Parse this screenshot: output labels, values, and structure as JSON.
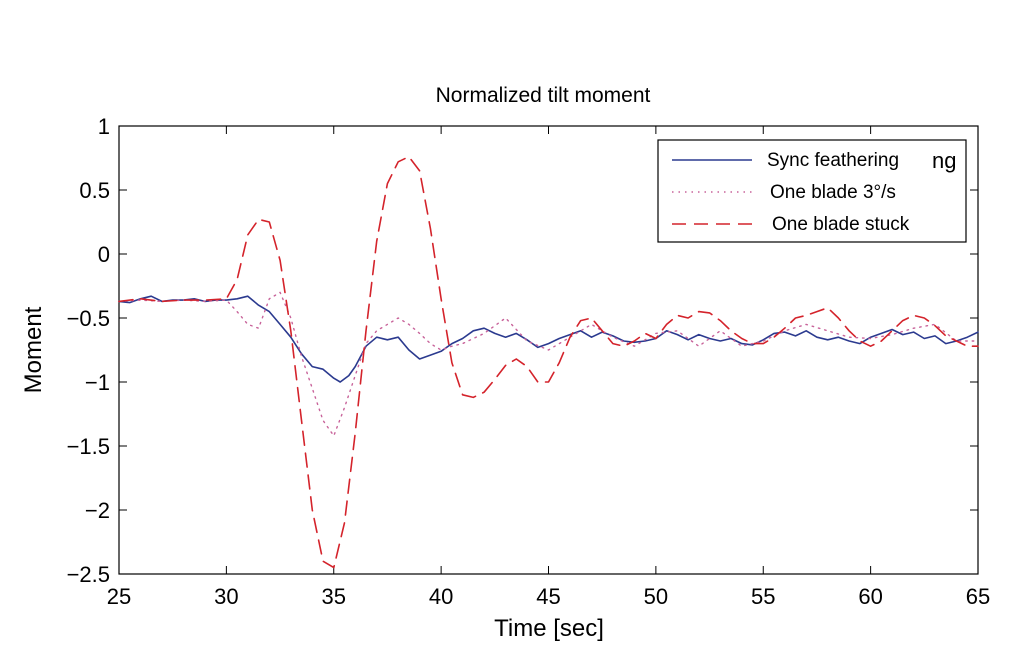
{
  "chart_data": {
    "type": "line",
    "title": "Normalized tilt moment",
    "xlabel": "Time [sec]",
    "ylabel": "Moment",
    "xlim": [
      25,
      65
    ],
    "ylim": [
      -2.5,
      1
    ],
    "xticks": [
      25,
      30,
      35,
      40,
      45,
      50,
      55,
      60,
      65
    ],
    "yticks": [
      1,
      0.5,
      0,
      -0.5,
      -1,
      -1.5,
      -2,
      -2.5
    ],
    "xtick_labels": [
      "25",
      "30",
      "35",
      "40",
      "45",
      "50",
      "55",
      "60",
      "65"
    ],
    "ytick_labels": [
      "1",
      "0.5",
      "0",
      "−0.5",
      "−1",
      "−1.5",
      "−2",
      "−2.5"
    ],
    "grid": false,
    "legend_position": "top-right",
    "legend_overflow_text": "ng",
    "series": [
      {
        "name": "Sync feathering",
        "color": "#2b3a8f",
        "style": "solid",
        "x": [
          25,
          25.5,
          26,
          26.5,
          27,
          27.5,
          28,
          28.5,
          29,
          29.5,
          30,
          30.5,
          31,
          31.5,
          32,
          32.5,
          33,
          33.5,
          34,
          34.5,
          35,
          35.3,
          35.7,
          36,
          36.5,
          37,
          37.5,
          38,
          38.5,
          39,
          39.5,
          40,
          40.5,
          41,
          41.5,
          42,
          42.5,
          43,
          43.5,
          44,
          44.5,
          45,
          45.5,
          46,
          46.5,
          47,
          47.5,
          48,
          48.5,
          49,
          49.5,
          50,
          50.5,
          51,
          51.5,
          52,
          52.5,
          53,
          53.5,
          54,
          54.5,
          55,
          55.5,
          56,
          56.5,
          57,
          57.5,
          58,
          58.5,
          59,
          59.5,
          60,
          60.5,
          61,
          61.5,
          62,
          62.5,
          63,
          63.5,
          64,
          64.5,
          65
        ],
        "y": [
          -0.37,
          -0.38,
          -0.35,
          -0.33,
          -0.37,
          -0.36,
          -0.36,
          -0.35,
          -0.37,
          -0.36,
          -0.36,
          -0.35,
          -0.33,
          -0.4,
          -0.45,
          -0.55,
          -0.65,
          -0.78,
          -0.88,
          -0.9,
          -0.97,
          -1.0,
          -0.95,
          -0.88,
          -0.72,
          -0.65,
          -0.67,
          -0.65,
          -0.75,
          -0.82,
          -0.79,
          -0.76,
          -0.7,
          -0.66,
          -0.6,
          -0.58,
          -0.62,
          -0.65,
          -0.62,
          -0.67,
          -0.73,
          -0.7,
          -0.66,
          -0.63,
          -0.6,
          -0.65,
          -0.61,
          -0.64,
          -0.68,
          -0.69,
          -0.68,
          -0.66,
          -0.6,
          -0.63,
          -0.67,
          -0.63,
          -0.66,
          -0.68,
          -0.66,
          -0.7,
          -0.71,
          -0.67,
          -0.62,
          -0.61,
          -0.64,
          -0.6,
          -0.65,
          -0.67,
          -0.65,
          -0.68,
          -0.7,
          -0.65,
          -0.62,
          -0.59,
          -0.63,
          -0.61,
          -0.66,
          -0.64,
          -0.7,
          -0.68,
          -0.65,
          -0.61
        ]
      },
      {
        "name": "One blade 3°/s",
        "color": "#c8639a",
        "style": "dotted",
        "x": [
          25,
          26,
          27,
          28,
          29,
          30,
          30.5,
          31,
          31.5,
          32,
          32.5,
          33,
          33.5,
          34,
          34.5,
          35,
          35.5,
          36,
          36.5,
          37,
          37.5,
          38,
          38.5,
          39,
          39.5,
          40,
          40.5,
          41,
          42,
          43,
          44,
          45,
          46,
          47,
          48,
          49,
          50,
          51,
          52,
          53,
          54,
          55,
          56,
          57,
          58,
          59,
          60,
          61,
          62,
          63,
          64,
          65
        ],
        "y": [
          -0.37,
          -0.36,
          -0.37,
          -0.36,
          -0.37,
          -0.36,
          -0.45,
          -0.55,
          -0.58,
          -0.35,
          -0.3,
          -0.5,
          -0.8,
          -1.05,
          -1.3,
          -1.42,
          -1.2,
          -0.95,
          -0.7,
          -0.6,
          -0.55,
          -0.5,
          -0.55,
          -0.62,
          -0.7,
          -0.75,
          -0.72,
          -0.7,
          -0.62,
          -0.5,
          -0.68,
          -0.75,
          -0.65,
          -0.55,
          -0.65,
          -0.72,
          -0.62,
          -0.6,
          -0.72,
          -0.6,
          -0.72,
          -0.68,
          -0.6,
          -0.55,
          -0.6,
          -0.65,
          -0.66,
          -0.63,
          -0.58,
          -0.55,
          -0.68,
          -0.68
        ]
      },
      {
        "name": "One blade stuck",
        "color": "#d4232b",
        "style": "dashed",
        "x": [
          25,
          26,
          27,
          28,
          29,
          30,
          30.5,
          31,
          31.5,
          32,
          32.5,
          33,
          33.5,
          34,
          34.5,
          35,
          35.5,
          36,
          36.5,
          37,
          37.5,
          38,
          38.5,
          39,
          39.5,
          40,
          40.5,
          41,
          41.5,
          42,
          42.5,
          43,
          43.5,
          44,
          44.5,
          45,
          45.5,
          46,
          46.5,
          47,
          47.5,
          48,
          48.5,
          49,
          49.5,
          50,
          50.5,
          51,
          51.5,
          52,
          52.5,
          53,
          53.5,
          54,
          54.5,
          55,
          55.5,
          56,
          56.5,
          57,
          57.5,
          58,
          58.5,
          59,
          59.5,
          60,
          60.5,
          61,
          61.5,
          62,
          62.5,
          63,
          63.5,
          64,
          64.5,
          65
        ],
        "y": [
          -0.37,
          -0.35,
          -0.37,
          -0.36,
          -0.36,
          -0.35,
          -0.2,
          0.15,
          0.27,
          0.25,
          -0.05,
          -0.6,
          -1.3,
          -2.0,
          -2.4,
          -2.45,
          -2.1,
          -1.4,
          -0.6,
          0.1,
          0.55,
          0.72,
          0.76,
          0.65,
          0.2,
          -0.35,
          -0.85,
          -1.1,
          -1.12,
          -1.08,
          -0.98,
          -0.87,
          -0.82,
          -0.88,
          -1.0,
          -1.0,
          -0.85,
          -0.65,
          -0.52,
          -0.5,
          -0.6,
          -0.7,
          -0.72,
          -0.68,
          -0.62,
          -0.66,
          -0.55,
          -0.48,
          -0.5,
          -0.45,
          -0.46,
          -0.52,
          -0.6,
          -0.66,
          -0.7,
          -0.7,
          -0.65,
          -0.58,
          -0.5,
          -0.48,
          -0.45,
          -0.42,
          -0.5,
          -0.6,
          -0.68,
          -0.72,
          -0.68,
          -0.6,
          -0.52,
          -0.48,
          -0.5,
          -0.56,
          -0.64,
          -0.68,
          -0.72,
          -0.72
        ]
      }
    ]
  }
}
